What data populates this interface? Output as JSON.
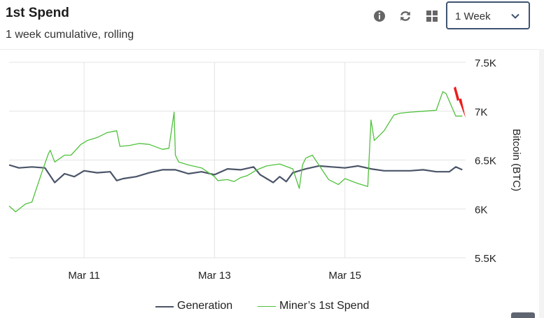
{
  "header": {
    "title": "1st Spend",
    "subtitle": "1 week cumulative, rolling"
  },
  "toolbar": {
    "icons": [
      "info-icon",
      "refresh-icon",
      "grid-icon"
    ],
    "range_select": {
      "value": "1 Week"
    }
  },
  "colors": {
    "generation": "#4b5568",
    "miners_first_spend": "#4fc13c",
    "gridline": "#e3e3e3",
    "select_border": "#3f5470",
    "annotation_arrow": "#ee1c1c"
  },
  "chart_data": {
    "type": "line",
    "ylabel": "Bitcoin (BTC)",
    "ylim": [
      5500,
      7500
    ],
    "yticks": [
      "5.5K",
      "6K",
      "6.5K",
      "7K",
      "7.5K"
    ],
    "yticks_values": [
      5500,
      6000,
      6500,
      7000,
      7500
    ],
    "xlim": [
      9.85,
      16.85
    ],
    "xticks": [
      "Mar 11",
      "Mar 13",
      "Mar 15"
    ],
    "xticks_values": [
      11,
      13,
      15
    ],
    "grid": true,
    "legend_position": "bottom-center",
    "series": [
      {
        "name": "Generation",
        "x": [
          9.85,
          10.0,
          10.2,
          10.4,
          10.55,
          10.7,
          10.85,
          11.0,
          11.2,
          11.4,
          11.5,
          11.6,
          11.8,
          12.0,
          12.2,
          12.4,
          12.6,
          12.8,
          13.0,
          13.2,
          13.4,
          13.6,
          13.7,
          13.8,
          13.9,
          14.0,
          14.1,
          14.2,
          14.4,
          14.6,
          14.8,
          15.0,
          15.2,
          15.4,
          15.6,
          15.8,
          16.0,
          16.2,
          16.4,
          16.6,
          16.7,
          16.8
        ],
        "y": [
          6450,
          6420,
          6430,
          6420,
          6270,
          6360,
          6330,
          6390,
          6370,
          6380,
          6290,
          6310,
          6330,
          6370,
          6400,
          6400,
          6360,
          6380,
          6350,
          6410,
          6400,
          6430,
          6350,
          6310,
          6270,
          6330,
          6280,
          6370,
          6410,
          6440,
          6430,
          6420,
          6440,
          6410,
          6390,
          6390,
          6390,
          6400,
          6380,
          6380,
          6430,
          6400
        ]
      },
      {
        "name": "Miner’s 1st Spend",
        "x": [
          9.85,
          9.95,
          10.1,
          10.2,
          10.35,
          10.45,
          10.48,
          10.55,
          10.7,
          10.8,
          10.95,
          11.05,
          11.2,
          11.35,
          11.5,
          11.55,
          11.7,
          11.85,
          12.0,
          12.2,
          12.3,
          12.38,
          12.4,
          12.45,
          12.6,
          12.8,
          13.0,
          13.05,
          13.2,
          13.3,
          13.4,
          13.5,
          13.65,
          13.8,
          14.0,
          14.2,
          14.3,
          14.35,
          14.4,
          14.5,
          14.7,
          14.75,
          14.9,
          15.0,
          15.2,
          15.35,
          15.4,
          15.45,
          15.6,
          15.75,
          15.85,
          16.0,
          16.2,
          16.4,
          16.5,
          16.55,
          16.7,
          16.8
        ],
        "y": [
          6030,
          5970,
          6050,
          6070,
          6370,
          6560,
          6600,
          6480,
          6550,
          6550,
          6660,
          6700,
          6730,
          6780,
          6800,
          6640,
          6650,
          6670,
          6660,
          6610,
          6620,
          6990,
          6550,
          6480,
          6450,
          6420,
          6330,
          6290,
          6300,
          6280,
          6320,
          6340,
          6400,
          6440,
          6460,
          6410,
          6210,
          6450,
          6520,
          6550,
          6350,
          6300,
          6250,
          6310,
          6260,
          6230,
          6910,
          6700,
          6800,
          6960,
          6980,
          6990,
          7000,
          7010,
          7200,
          7180,
          6950,
          6950
        ]
      }
    ]
  },
  "annotation": {
    "type": "arrow",
    "points_to_x": 16.85,
    "points_to_y": 6930
  }
}
